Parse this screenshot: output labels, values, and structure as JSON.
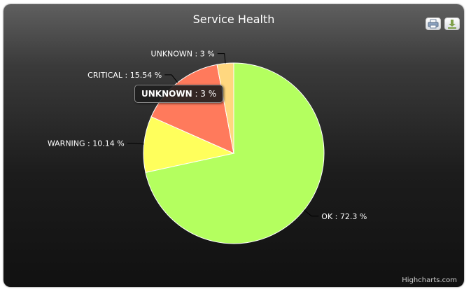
{
  "chart_data": {
    "type": "pie",
    "title": "Service Health",
    "slices": [
      {
        "name": "OK",
        "value": 72.3,
        "label": "OK : 72.3 %",
        "color": "#b4ff5f"
      },
      {
        "name": "WARNING",
        "value": 10.14,
        "label": "WARNING : 10.14 %",
        "color": "#ffff5c"
      },
      {
        "name": "CRITICAL",
        "value": 15.54,
        "label": "CRITICAL : 15.54 %",
        "color": "#ff7a5c"
      },
      {
        "name": "UNKNOWN",
        "value": 3,
        "label": "UNKNOWN : 3 %",
        "color": "#ffd77f"
      }
    ]
  },
  "tooltip": {
    "name": "UNKNOWN",
    "value_text": ": 3 %"
  },
  "toolbar": {
    "print_icon": "printer-icon",
    "export_icon": "download-icon"
  },
  "credits": "Highcharts.com"
}
